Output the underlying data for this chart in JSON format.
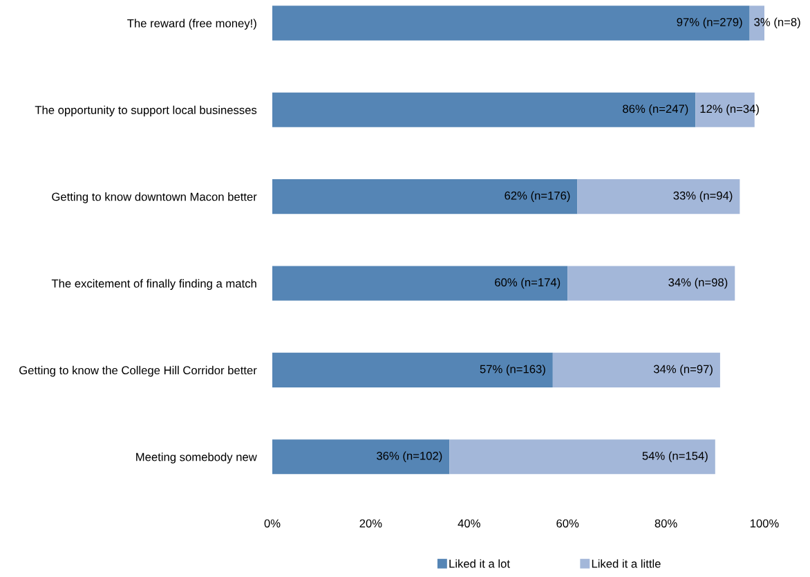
{
  "chart_data": {
    "type": "bar",
    "orientation": "horizontal",
    "stacked": true,
    "categories": [
      "The reward (free money!)",
      "The opportunity to support local businesses",
      "Getting to know downtown Macon better",
      "The excitement of finally finding a match",
      "Getting to know the College Hill Corridor better",
      "Meeting somebody new"
    ],
    "series": [
      {
        "name": "Liked it a lot",
        "color": "#5585b5",
        "values": [
          97,
          86,
          62,
          60,
          57,
          36
        ],
        "value_labels": [
          "97% (n=279)",
          "86% (n=247)",
          "62% (n=176)",
          "60% (n=174)",
          "57% (n=163)",
          "36% (n=102)"
        ]
      },
      {
        "name": "Liked it a little",
        "color": "#a3b7d9",
        "values": [
          3,
          12,
          33,
          34,
          34,
          54
        ],
        "value_labels": [
          "3% (n=8)",
          "12% (n=34)",
          "33% (n=94)",
          "34% (n=98)",
          "34% (n=97)",
          "54% (n=154)"
        ]
      }
    ],
    "xlim": [
      0,
      100
    ],
    "xticks": [
      {
        "value": 0,
        "label": "0%"
      },
      {
        "value": 20,
        "label": "20%"
      },
      {
        "value": 40,
        "label": "40%"
      },
      {
        "value": 60,
        "label": "60%"
      },
      {
        "value": 80,
        "label": "80%"
      },
      {
        "value": 100,
        "label": "100%"
      }
    ],
    "grid": false,
    "legend": "bottom"
  }
}
